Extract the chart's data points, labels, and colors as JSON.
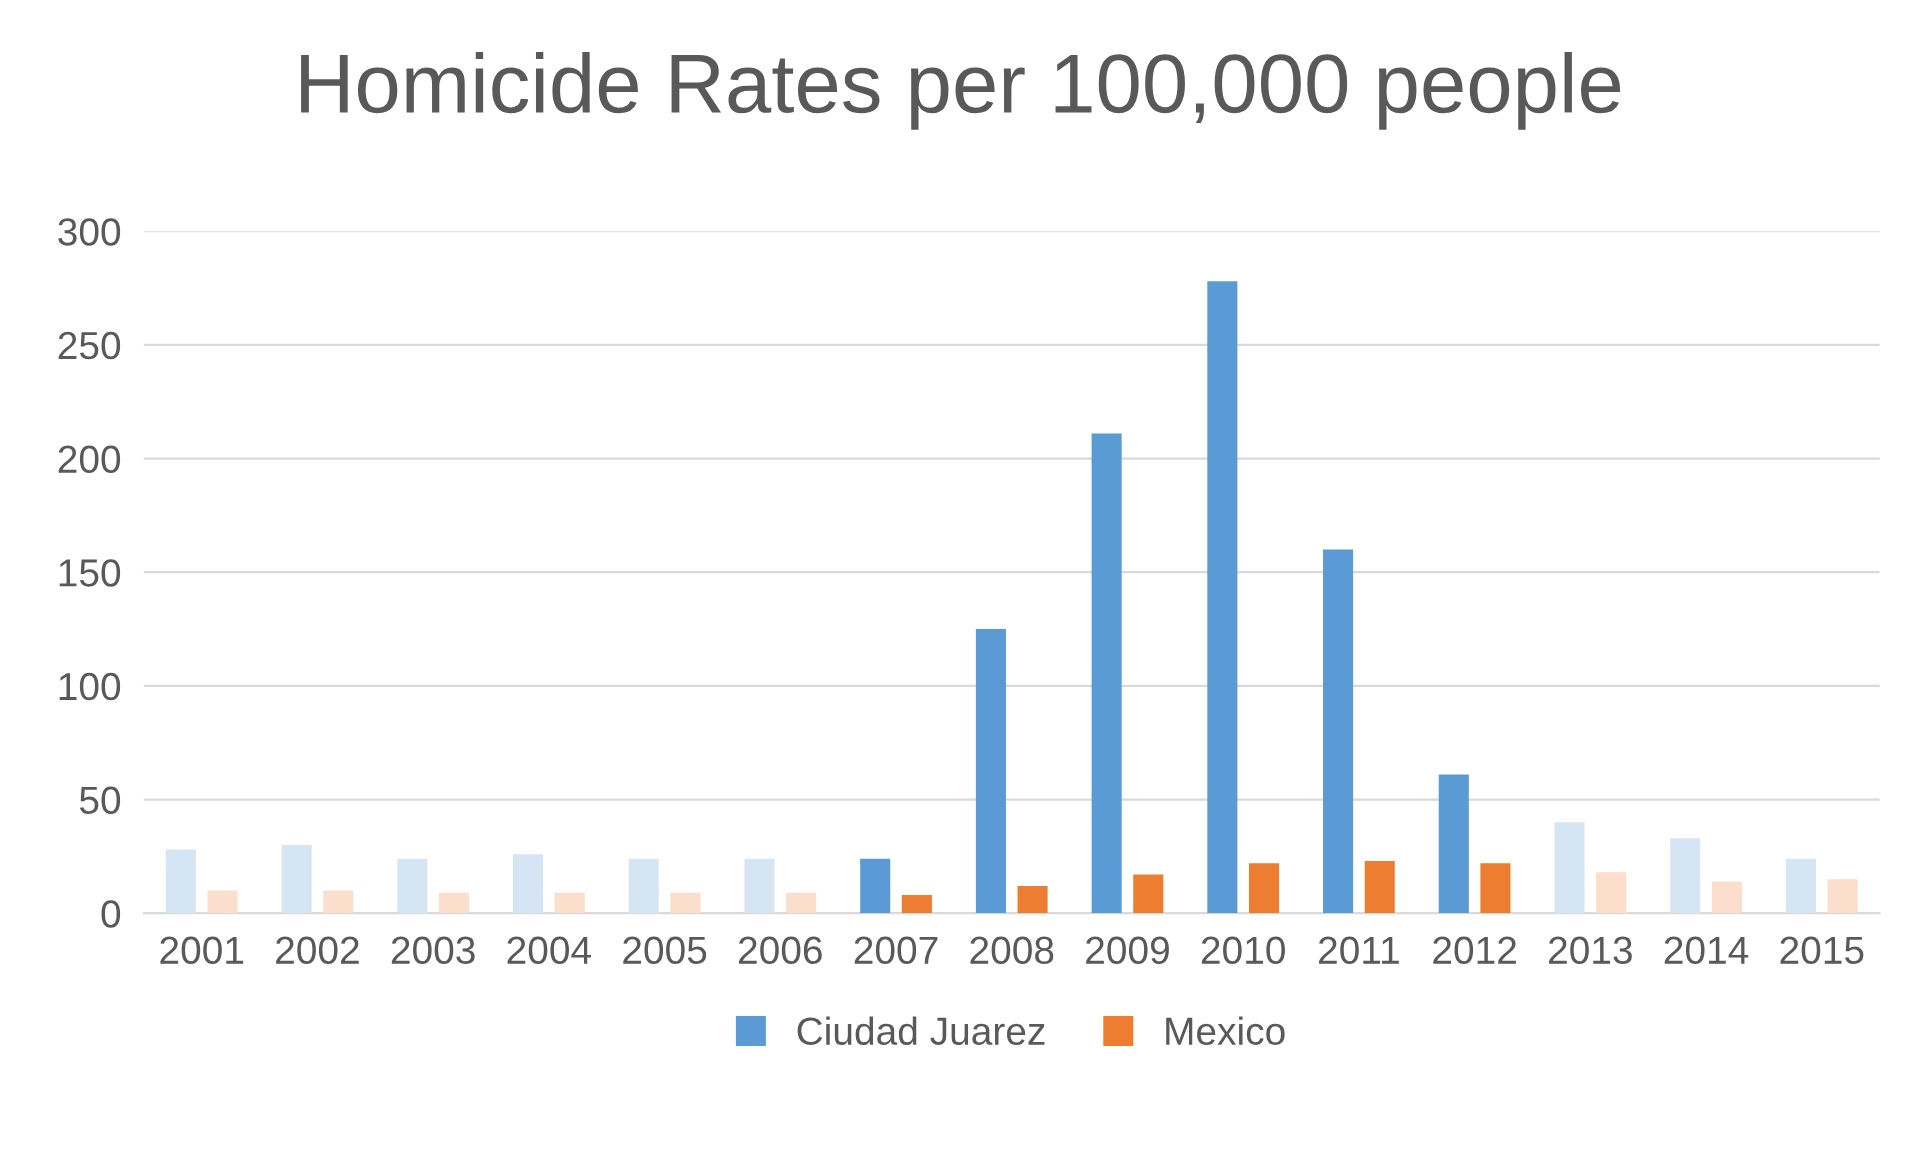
{
  "chart_data": {
    "type": "bar",
    "title": "Homicide Rates per 100,000 people",
    "categories": [
      "2001",
      "2002",
      "2003",
      "2004",
      "2005",
      "2006",
      "2007",
      "2008",
      "2009",
      "2010",
      "2011",
      "2012",
      "2013",
      "2014",
      "2015"
    ],
    "series": [
      {
        "name": "Ciudad Juarez",
        "color": "#5b9bd5",
        "colors": [
          "#d6e5f4",
          "#d6e5f4",
          "#d6e5f4",
          "#d6e5f4",
          "#d6e5f4",
          "#d6e5f4",
          "#5b9bd5",
          "#5b9bd5",
          "#5b9bd5",
          "#5b9bd5",
          "#5b9bd5",
          "#5b9bd5",
          "#d6e5f4",
          "#d6e5f4",
          "#d6e5f4"
        ],
        "values": [
          28,
          30,
          24,
          26,
          24,
          24,
          24,
          125,
          211,
          278,
          160,
          61,
          40,
          33,
          24
        ]
      },
      {
        "name": "Mexico",
        "color": "#ed7d31",
        "colors": [
          "#fbdecb",
          "#fbdecb",
          "#fbdecb",
          "#fbdecb",
          "#fbdecb",
          "#fbdecb",
          "#ed7d31",
          "#ed7d31",
          "#ed7d31",
          "#ed7d31",
          "#ed7d31",
          "#ed7d31",
          "#fbdecb",
          "#fbdecb",
          "#fbdecb"
        ],
        "values": [
          10,
          10,
          9,
          9,
          9,
          9,
          8,
          12,
          17,
          22,
          23,
          22,
          18,
          14,
          15
        ]
      }
    ],
    "ylim": [
      0,
      300
    ],
    "yticks": [
      0,
      50,
      100,
      150,
      200,
      250,
      300
    ],
    "grid": "y",
    "legend": "bottom"
  }
}
